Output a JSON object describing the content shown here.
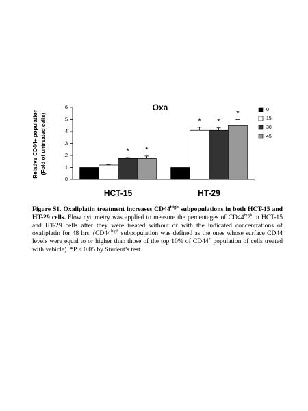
{
  "chart_data": {
    "type": "bar",
    "title": "Oxa",
    "ylabel": [
      "Relative CD44+ population",
      "(Fold of untreated cells)"
    ],
    "categories": [
      "HCT-15",
      "HT-29"
    ],
    "series": [
      {
        "name": "0",
        "color": "#000000",
        "values": [
          1,
          1
        ],
        "errors": [
          0,
          0
        ],
        "significance": [
          null,
          null
        ]
      },
      {
        "name": "15",
        "color": "#ffffff",
        "values": [
          1.2,
          4.1
        ],
        "errors": [
          0.03,
          0.25
        ],
        "significance": [
          null,
          "*"
        ]
      },
      {
        "name": "30",
        "color": "#333333",
        "values": [
          1.75,
          4.1
        ],
        "errors": [
          0.08,
          0.2
        ],
        "significance": [
          "*",
          "*"
        ]
      },
      {
        "name": "45",
        "color": "#999999",
        "values": [
          1.75,
          4.5
        ],
        "errors": [
          0.2,
          0.5
        ],
        "significance": [
          "*",
          "*"
        ]
      }
    ],
    "ylim": [
      0,
      6
    ],
    "yticks": [
      0,
      1,
      2,
      3,
      4,
      5,
      6
    ],
    "grid": false,
    "legend": "right"
  },
  "caption": {
    "runs": [
      {
        "text": "Figure S1. Oxaliplatin treatment increases CD44",
        "bold": true
      },
      {
        "text": "high",
        "bold": true,
        "sup": true
      },
      {
        "text": " subpopulations in both HCT-15 and HT-29 cells.",
        "bold": true
      },
      {
        "text": " Flow cytometry was applied to measure the percentages of CD44"
      },
      {
        "text": "high",
        "sup": true
      },
      {
        "text": " in HCT-15 and HT-29 cells after they were treated without or with the indicated concentrations of oxaliplatin for 48 hrs. (CD44"
      },
      {
        "text": "high",
        "sup": true
      },
      {
        "text": " subpopulation was defined as the ones whose surface CD44 levels were equal to or higher than those of the top 10% of CD44"
      },
      {
        "text": "+",
        "sup": true
      },
      {
        "text": " population of cells treated with vehicle). *P < 0.05 by Student’s test"
      }
    ]
  }
}
